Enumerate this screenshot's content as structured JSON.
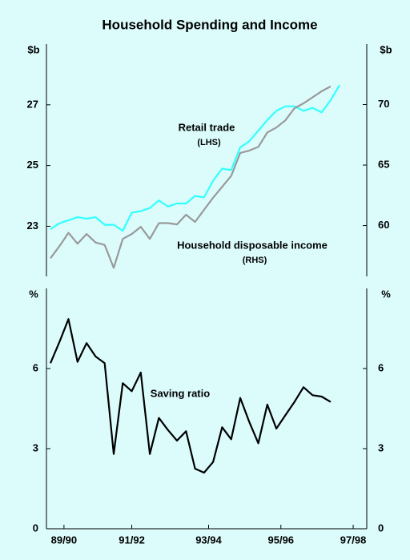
{
  "chart_data": [
    {
      "type": "line",
      "title": "Household Spending and Income",
      "ylabel": "$b",
      "y2label": "$b",
      "ylim": [
        21.35,
        29
      ],
      "yticks": [
        23,
        25,
        27
      ],
      "y2lim": [
        55.8,
        75
      ],
      "y2ticks": [
        60,
        65,
        70
      ],
      "xlim": [
        -0.44,
        35
      ],
      "series": [
        {
          "name": "Retail trade",
          "note": "(LHS)",
          "color": "#33ffff",
          "axis": "y",
          "values": [
            22.9,
            23.1,
            23.2,
            23.3,
            23.25,
            23.3,
            23.05,
            23.05,
            22.85,
            23.45,
            23.5,
            23.6,
            23.85,
            23.65,
            23.75,
            23.75,
            24.0,
            23.95,
            24.5,
            24.9,
            24.85,
            25.6,
            25.8,
            26.15,
            26.5,
            26.8,
            26.95,
            26.95,
            26.8,
            26.9,
            26.75,
            27.15,
            27.65
          ]
        },
        {
          "name": "Household disposable income",
          "note": "(RHS)",
          "color": "#999999",
          "axis": "y2",
          "values": [
            57.3,
            58.3,
            59.4,
            58.5,
            59.3,
            58.6,
            58.4,
            56.5,
            58.9,
            59.3,
            59.9,
            58.9,
            60.2,
            60.2,
            60.1,
            60.9,
            60.3,
            61.3,
            62.3,
            63.2,
            64.1,
            66.0,
            66.2,
            66.5,
            67.7,
            68.1,
            68.7,
            69.7,
            70.1,
            70.6,
            71.1,
            71.5,
            null
          ]
        }
      ]
    },
    {
      "type": "line",
      "ylabel": "%",
      "y2label": "%",
      "ylim": [
        0,
        9
      ],
      "yticks": [
        0,
        3,
        6
      ],
      "y2lim": [
        0,
        9
      ],
      "y2ticks": [
        0,
        3,
        6
      ],
      "xlim": [
        -0.44,
        35
      ],
      "xticks": [
        {
          "value": 1.5,
          "label": "89/90"
        },
        {
          "value": 9,
          "label": "91/92"
        },
        {
          "value": 17.5,
          "label": "93/94"
        },
        {
          "value": 25.5,
          "label": "95/96"
        },
        {
          "value": 33.5,
          "label": "97/98"
        }
      ],
      "series": [
        {
          "name": "Saving ratio",
          "color": "#000000",
          "axis": "y",
          "values": [
            6.2,
            7.0,
            7.85,
            6.25,
            6.95,
            6.45,
            6.2,
            2.8,
            5.45,
            5.15,
            5.85,
            2.8,
            4.15,
            3.7,
            3.3,
            3.65,
            2.25,
            2.1,
            2.5,
            3.8,
            3.35,
            4.9,
            4.0,
            3.2,
            4.65,
            3.75,
            4.25,
            4.75,
            5.3,
            5.0,
            4.95,
            4.75,
            null
          ]
        }
      ]
    }
  ]
}
